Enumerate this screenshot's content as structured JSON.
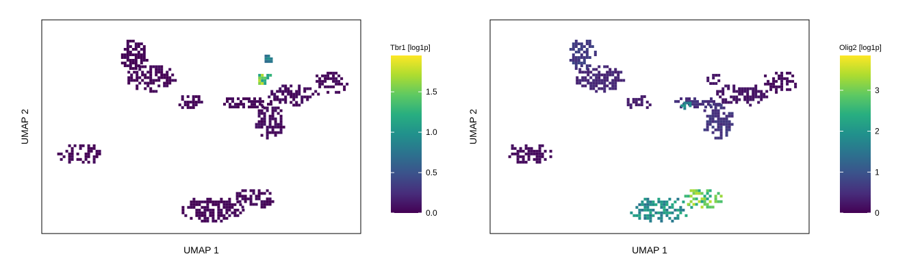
{
  "chart_data": [
    {
      "type": "scatter",
      "subtype": "umap-hexbin",
      "xlabel": "UMAP 1",
      "ylabel": "UMAP 2",
      "color_label": "Tbr1 [log1p]",
      "color_scale": "viridis",
      "color_range": [
        0,
        1.95
      ],
      "color_ticks": [
        "0.0",
        "0.5",
        "1.0",
        "1.5"
      ],
      "xlim": [
        0,
        100
      ],
      "ylim": [
        0,
        100
      ],
      "grid": false,
      "legend_position": "right",
      "clusters": [
        {
          "x": [
            24,
            33
          ],
          "y": [
            77,
            92
          ],
          "expr": 0.02
        },
        {
          "x": [
            26,
            42
          ],
          "y": [
            67,
            80
          ],
          "expr": 0.02
        },
        {
          "x": [
            42,
            50
          ],
          "y": [
            58,
            66
          ],
          "expr": 0.02
        },
        {
          "x": [
            56,
            72
          ],
          "y": [
            59,
            65
          ],
          "expr": 0.03
        },
        {
          "x": [
            66,
            76
          ],
          "y": [
            45,
            62
          ],
          "expr": 0.05
        },
        {
          "x": [
            70,
            87
          ],
          "y": [
            60,
            71
          ],
          "expr": 0.05
        },
        {
          "x": [
            85,
            96
          ],
          "y": [
            66,
            77
          ],
          "expr": 0.03
        },
        {
          "x": [
            4,
            19
          ],
          "y": [
            33,
            43
          ],
          "expr": 0.02
        },
        {
          "x": [
            43,
            63
          ],
          "y": [
            6,
            18
          ],
          "expr": 0.02
        },
        {
          "x": [
            60,
            73
          ],
          "y": [
            12,
            22
          ],
          "expr": 0.03
        },
        {
          "x": [
            67,
            72
          ],
          "y": [
            70,
            76
          ],
          "expr": 1.45
        },
        {
          "x": [
            69,
            72
          ],
          "y": [
            80,
            85
          ],
          "expr": 0.9
        }
      ]
    },
    {
      "type": "scatter",
      "subtype": "umap-hexbin",
      "xlabel": "UMAP 1",
      "ylabel": "UMAP 2",
      "color_label": "Olig2 [log1p]",
      "color_scale": "viridis",
      "color_range": [
        0,
        3.85
      ],
      "color_ticks": [
        "0",
        "1",
        "2",
        "3"
      ],
      "xlim": [
        0,
        100
      ],
      "ylim": [
        0,
        100
      ],
      "grid": false,
      "legend_position": "right",
      "clusters": [
        {
          "x": [
            24,
            33
          ],
          "y": [
            77,
            92
          ],
          "expr": 0.7
        },
        {
          "x": [
            26,
            42
          ],
          "y": [
            67,
            80
          ],
          "expr": 0.4
        },
        {
          "x": [
            42,
            50
          ],
          "y": [
            58,
            66
          ],
          "expr": 0.3
        },
        {
          "x": [
            56,
            72
          ],
          "y": [
            59,
            65
          ],
          "expr": 0.5
        },
        {
          "x": [
            66,
            76
          ],
          "y": [
            45,
            62
          ],
          "expr": 0.6
        },
        {
          "x": [
            70,
            87
          ],
          "y": [
            60,
            71
          ],
          "expr": 0.2
        },
        {
          "x": [
            85,
            96
          ],
          "y": [
            66,
            77
          ],
          "expr": 0.1
        },
        {
          "x": [
            4,
            19
          ],
          "y": [
            33,
            43
          ],
          "expr": 0.1
        },
        {
          "x": [
            43,
            63
          ],
          "y": [
            6,
            18
          ],
          "expr": 1.9
        },
        {
          "x": [
            60,
            73
          ],
          "y": [
            12,
            22
          ],
          "expr": 2.8
        },
        {
          "x": [
            58,
            63
          ],
          "y": [
            58,
            63
          ],
          "expr": 1.8
        },
        {
          "x": [
            67,
            72
          ],
          "y": [
            70,
            76
          ],
          "expr": 0.2
        }
      ]
    }
  ]
}
